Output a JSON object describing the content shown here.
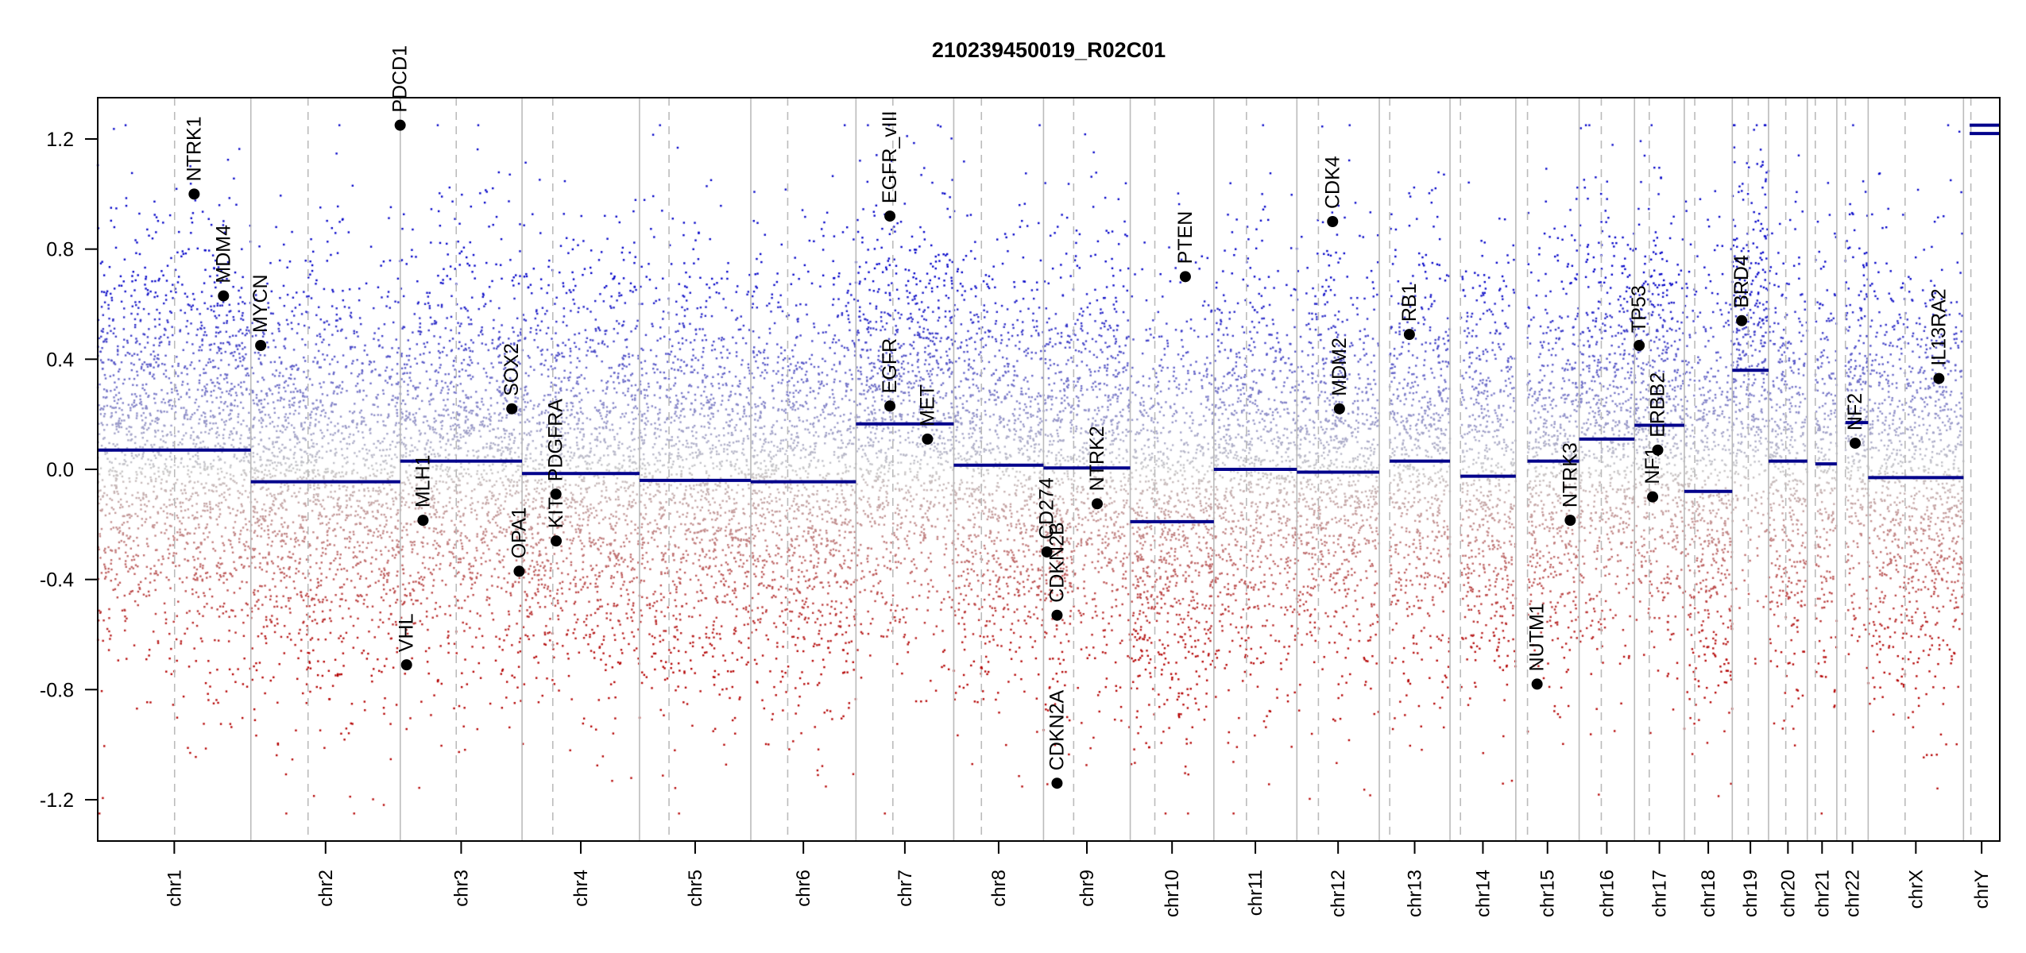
{
  "chart_data": {
    "type": "scatter",
    "title": "210239450019_R02C01",
    "xlabel": "",
    "ylabel": "",
    "ylim": [
      -1.35,
      1.35
    ],
    "clip_value": 1.25,
    "yticks": [
      -1.2,
      -0.8,
      -0.4,
      0.0,
      0.4,
      0.8,
      1.2
    ],
    "ytick_labels": [
      "-1.2",
      "-0.8",
      "-0.4",
      "0.0",
      "0.4",
      "0.8",
      "1.2"
    ],
    "colors": {
      "gain": "#0000c8",
      "neutral": "#c8c8c8",
      "loss": "#b40000",
      "segment": "#00008b",
      "gene": "#000000",
      "chrom_line": "#bbbbbb",
      "centromere_line": "#bbbbbb"
    },
    "chromosomes": [
      {
        "name": "chr1",
        "length_mb": 249,
        "centromere_mb": 125
      },
      {
        "name": "chr2",
        "length_mb": 243,
        "centromere_mb": 93
      },
      {
        "name": "chr3",
        "length_mb": 198,
        "centromere_mb": 91
      },
      {
        "name": "chr4",
        "length_mb": 191,
        "centromere_mb": 50
      },
      {
        "name": "chr5",
        "length_mb": 181,
        "centromere_mb": 48
      },
      {
        "name": "chr6",
        "length_mb": 171,
        "centromere_mb": 60
      },
      {
        "name": "chr7",
        "length_mb": 159,
        "centromere_mb": 60
      },
      {
        "name": "chr8",
        "length_mb": 146,
        "centromere_mb": 45
      },
      {
        "name": "chr9",
        "length_mb": 141,
        "centromere_mb": 49
      },
      {
        "name": "chr10",
        "length_mb": 136,
        "centromere_mb": 40
      },
      {
        "name": "chr11",
        "length_mb": 135,
        "centromere_mb": 53
      },
      {
        "name": "chr12",
        "length_mb": 134,
        "centromere_mb": 35
      },
      {
        "name": "chr13",
        "length_mb": 115,
        "centromere_mb": 17
      },
      {
        "name": "chr14",
        "length_mb": 107,
        "centromere_mb": 17
      },
      {
        "name": "chr15",
        "length_mb": 103,
        "centromere_mb": 19
      },
      {
        "name": "chr16",
        "length_mb": 90,
        "centromere_mb": 36
      },
      {
        "name": "chr17",
        "length_mb": 81,
        "centromere_mb": 24
      },
      {
        "name": "chr18",
        "length_mb": 78,
        "centromere_mb": 17
      },
      {
        "name": "chr19",
        "length_mb": 59,
        "centromere_mb": 26
      },
      {
        "name": "chr20",
        "length_mb": 63,
        "centromere_mb": 28
      },
      {
        "name": "chr21",
        "length_mb": 48,
        "centromere_mb": 13
      },
      {
        "name": "chr22",
        "length_mb": 51,
        "centromere_mb": 14
      },
      {
        "name": "chrX",
        "length_mb": 155,
        "centromere_mb": 60
      },
      {
        "name": "chrY",
        "length_mb": 59,
        "centromere_mb": 12
      }
    ],
    "segments": [
      {
        "chr": "chr1",
        "start": 0,
        "end": 249,
        "value": 0.07
      },
      {
        "chr": "chr2",
        "start": 0,
        "end": 243,
        "value": -0.045
      },
      {
        "chr": "chr3",
        "start": 0,
        "end": 198,
        "value": 0.03
      },
      {
        "chr": "chr4",
        "start": 0,
        "end": 191,
        "value": -0.015
      },
      {
        "chr": "chr5",
        "start": 0,
        "end": 181,
        "value": -0.04
      },
      {
        "chr": "chr6",
        "start": 0,
        "end": 171,
        "value": -0.045
      },
      {
        "chr": "chr7",
        "start": 0,
        "end": 159,
        "value": 0.165
      },
      {
        "chr": "chr8",
        "start": 0,
        "end": 146,
        "value": 0.015
      },
      {
        "chr": "chr9",
        "start": 0,
        "end": 141,
        "value": 0.005
      },
      {
        "chr": "chr10",
        "start": 0,
        "end": 136,
        "value": -0.19
      },
      {
        "chr": "chr11",
        "start": 0,
        "end": 135,
        "value": 0.0
      },
      {
        "chr": "chr12",
        "start": 0,
        "end": 134,
        "value": -0.01
      },
      {
        "chr": "chr13",
        "start": 17,
        "end": 115,
        "value": 0.03
      },
      {
        "chr": "chr14",
        "start": 17,
        "end": 107,
        "value": -0.025
      },
      {
        "chr": "chr15",
        "start": 19,
        "end": 103,
        "value": 0.03
      },
      {
        "chr": "chr16",
        "start": 0,
        "end": 90,
        "value": 0.11
      },
      {
        "chr": "chr17",
        "start": 0,
        "end": 81,
        "value": 0.16
      },
      {
        "chr": "chr18",
        "start": 0,
        "end": 78,
        "value": -0.08
      },
      {
        "chr": "chr19",
        "start": 0,
        "end": 59,
        "value": 0.36
      },
      {
        "chr": "chr20",
        "start": 0,
        "end": 63,
        "value": 0.03
      },
      {
        "chr": "chr21",
        "start": 13,
        "end": 48,
        "value": 0.02
      },
      {
        "chr": "chr22",
        "start": 14,
        "end": 51,
        "value": 0.17
      },
      {
        "chr": "chrX",
        "start": 0,
        "end": 155,
        "value": -0.03
      },
      {
        "chr": "chrY",
        "start": 10,
        "end": 59,
        "value": 1.25
      },
      {
        "chr": "chrY",
        "start": 10,
        "end": 59,
        "value": 1.22
      }
    ],
    "genes": [
      {
        "name": "NTRK1",
        "chr": "chr1",
        "pos_mb": 156.8,
        "value": 1.0
      },
      {
        "name": "MDM4",
        "chr": "chr1",
        "pos_mb": 204.5,
        "value": 0.63
      },
      {
        "name": "MYCN",
        "chr": "chr2",
        "pos_mb": 16,
        "value": 0.45
      },
      {
        "name": "PDCD1",
        "chr": "chr2",
        "pos_mb": 242.8,
        "value": 1.25
      },
      {
        "name": "VHL",
        "chr": "chr3",
        "pos_mb": 10.2,
        "value": -0.71
      },
      {
        "name": "MLH1",
        "chr": "chr3",
        "pos_mb": 37,
        "value": -0.185
      },
      {
        "name": "SOX2",
        "chr": "chr3",
        "pos_mb": 181.4,
        "value": 0.22
      },
      {
        "name": "OPA1",
        "chr": "chr3",
        "pos_mb": 193.3,
        "value": -0.37
      },
      {
        "name": "PDGFRA",
        "chr": "chr4",
        "pos_mb": 55.1,
        "value": -0.09
      },
      {
        "name": "KIT",
        "chr": "chr4",
        "pos_mb": 55.5,
        "value": -0.26
      },
      {
        "name": "EGFR",
        "chr": "chr7",
        "pos_mb": 55.2,
        "value": 0.23
      },
      {
        "name": "EGFR_vIII",
        "chr": "chr7",
        "pos_mb": 55.2,
        "value": 0.92
      },
      {
        "name": "MET",
        "chr": "chr7",
        "pos_mb": 116.3,
        "value": 0.11
      },
      {
        "name": "CD274",
        "chr": "chr9",
        "pos_mb": 5.5,
        "value": -0.3
      },
      {
        "name": "CDKN2A",
        "chr": "chr9",
        "pos_mb": 21.97,
        "value": -1.14
      },
      {
        "name": "CDKN2B",
        "chr": "chr9",
        "pos_mb": 22.0,
        "value": -0.53
      },
      {
        "name": "NTRK2",
        "chr": "chr9",
        "pos_mb": 87.3,
        "value": -0.125
      },
      {
        "name": "PTEN",
        "chr": "chr10",
        "pos_mb": 89.6,
        "value": 0.7
      },
      {
        "name": "CDK4",
        "chr": "chr12",
        "pos_mb": 58.1,
        "value": 0.9
      },
      {
        "name": "MDM2",
        "chr": "chr12",
        "pos_mb": 69.2,
        "value": 0.22
      },
      {
        "name": "RB1",
        "chr": "chr13",
        "pos_mb": 48.9,
        "value": 0.49
      },
      {
        "name": "NUTM1",
        "chr": "chr15",
        "pos_mb": 34.6,
        "value": -0.78
      },
      {
        "name": "NTRK3",
        "chr": "chr15",
        "pos_mb": 88.5,
        "value": -0.185
      },
      {
        "name": "TP53",
        "chr": "chr17",
        "pos_mb": 7.6,
        "value": 0.45
      },
      {
        "name": "NF1",
        "chr": "chr17",
        "pos_mb": 29.5,
        "value": -0.1
      },
      {
        "name": "ERBB2",
        "chr": "chr17",
        "pos_mb": 37.8,
        "value": 0.07
      },
      {
        "name": "BRD4",
        "chr": "chr19",
        "pos_mb": 15.3,
        "value": 0.54
      },
      {
        "name": "NF2",
        "chr": "chr22",
        "pos_mb": 29.9,
        "value": 0.095
      },
      {
        "name": "IL13RA2",
        "chr": "chrX",
        "pos_mb": 115,
        "value": 0.33
      }
    ]
  }
}
